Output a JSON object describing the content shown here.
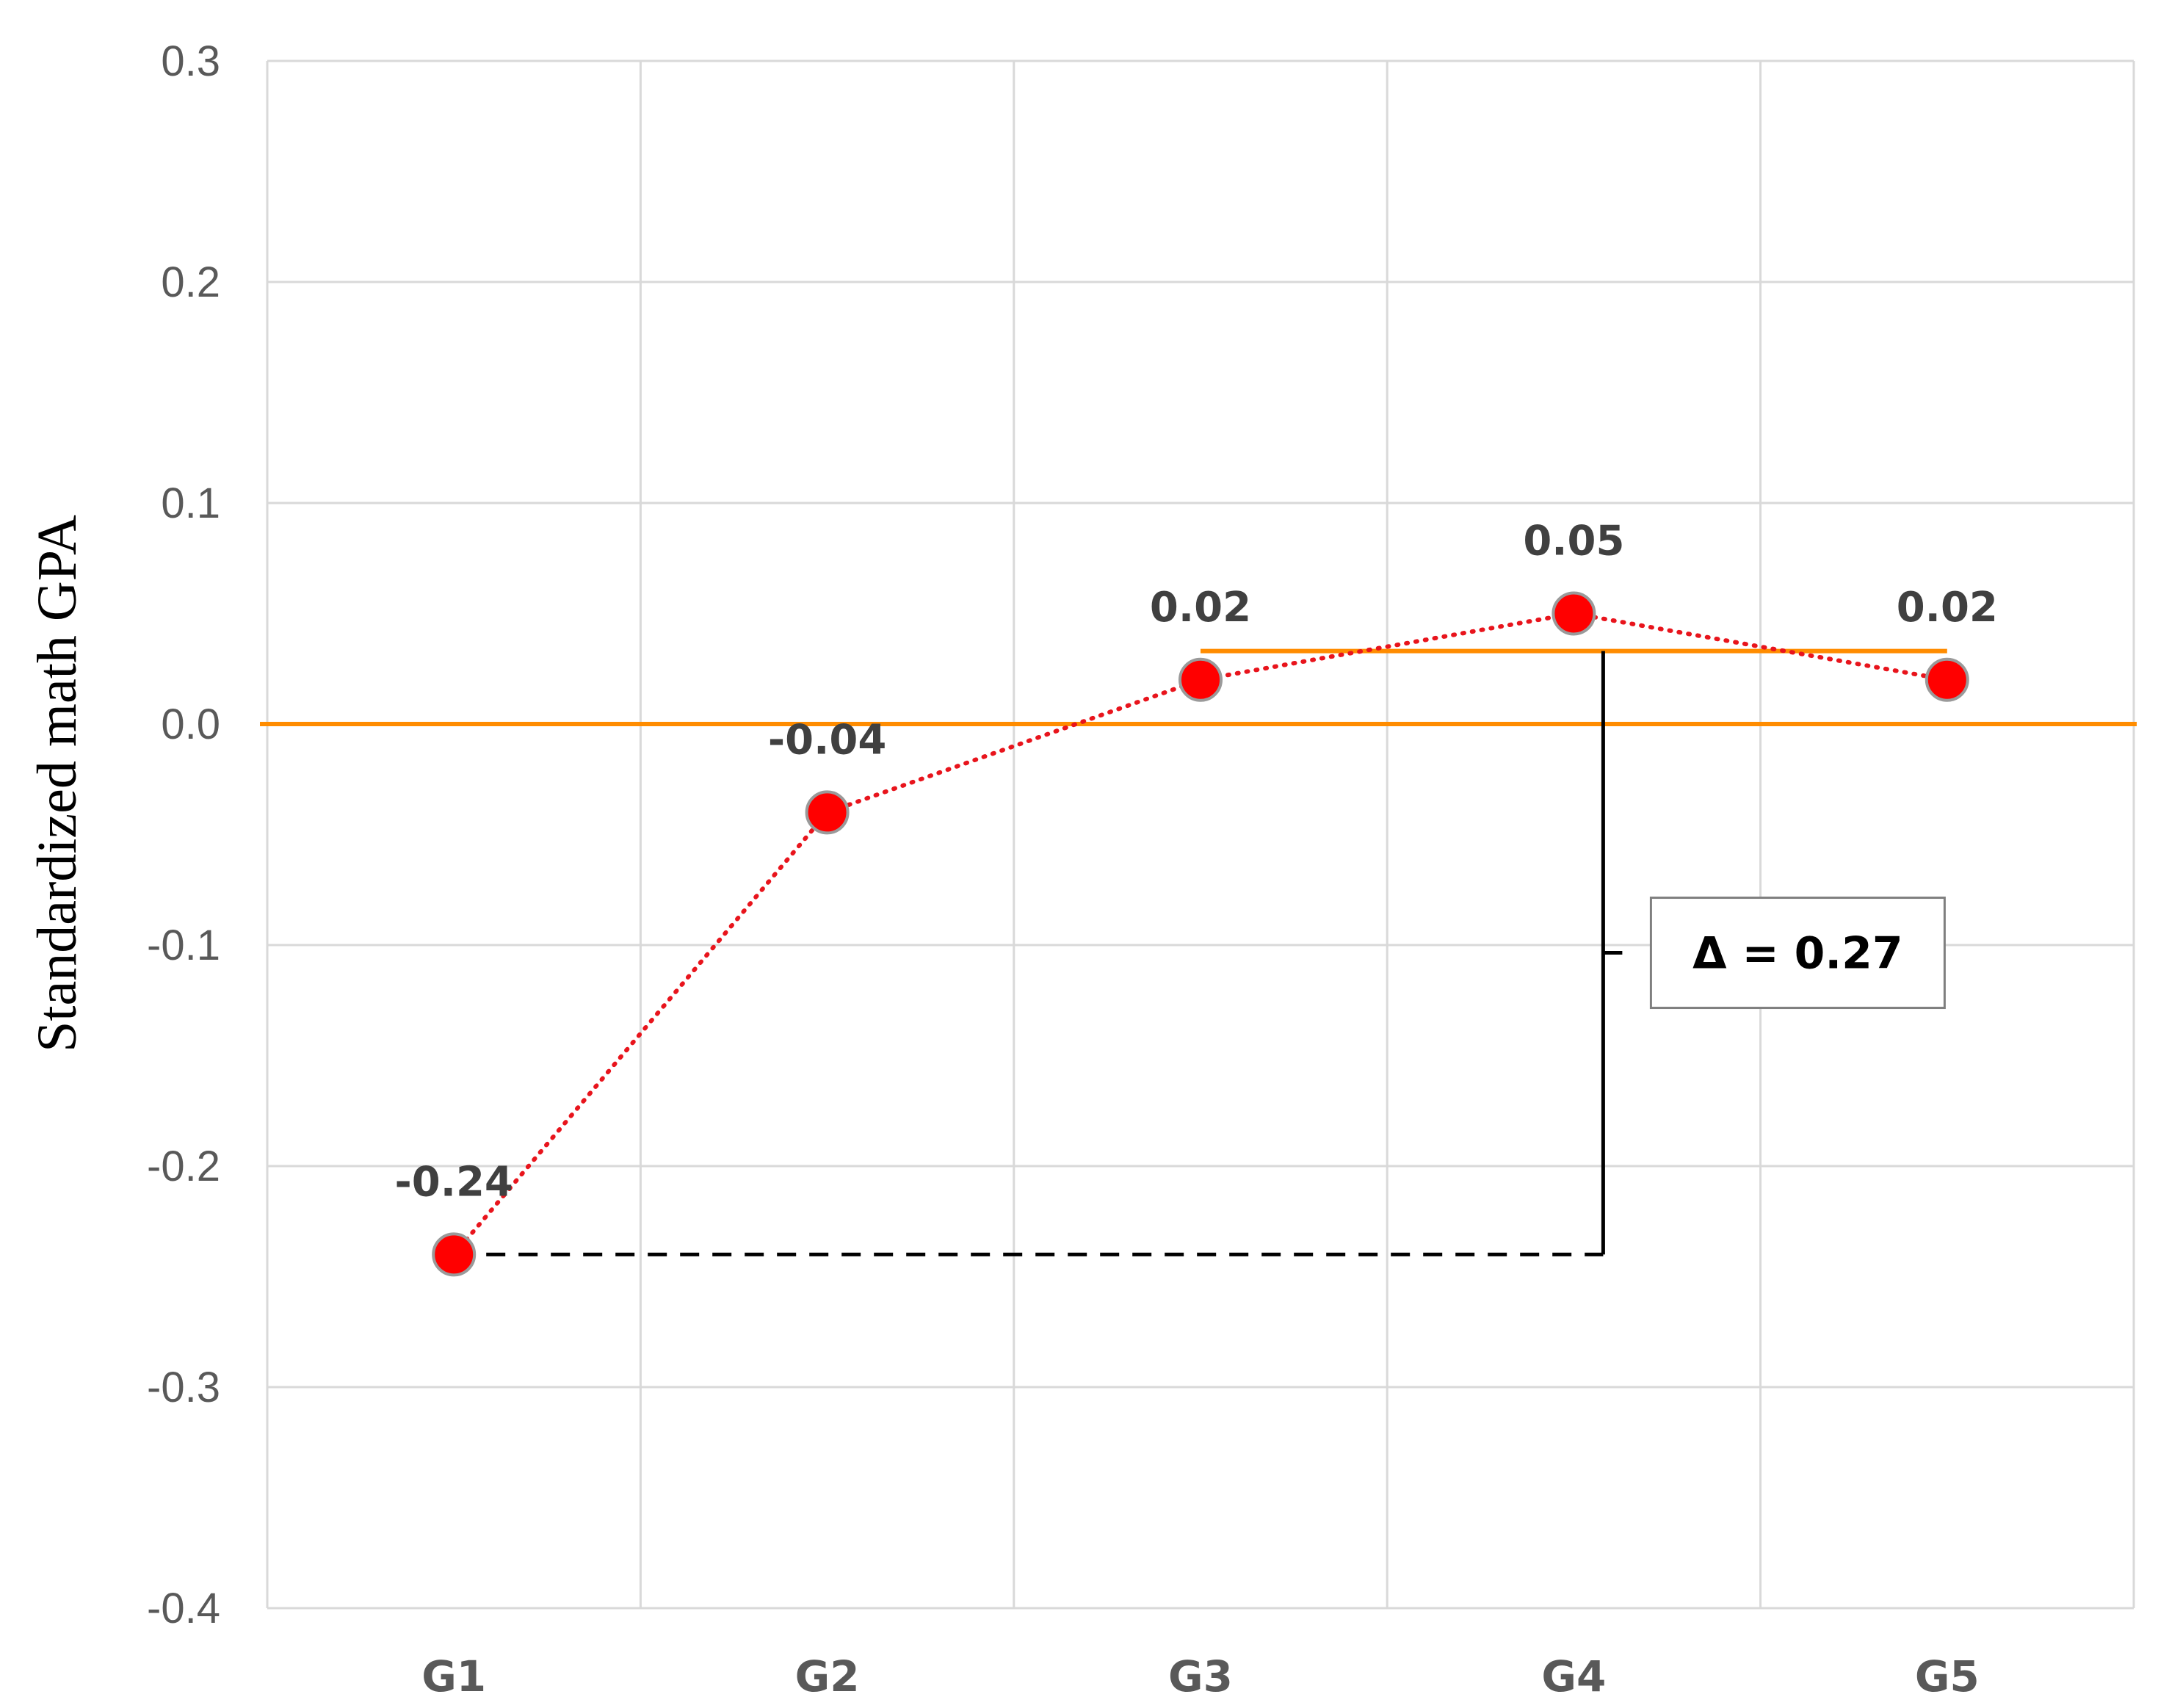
{
  "chart_data": {
    "type": "line",
    "categories": [
      "G1",
      "G2",
      "G3",
      "G4",
      "G5"
    ],
    "series": [
      {
        "values": [
          -0.24,
          -0.04,
          0.02,
          0.05,
          0.02
        ]
      }
    ],
    "data_labels": [
      "-0.24",
      "-0.04",
      "0.02",
      "0.05",
      "0.02"
    ],
    "ylabel": "Standardized math GPA",
    "xlabel": "",
    "ylim": [
      -0.4,
      0.3
    ],
    "yticks": [
      0.3,
      0.2,
      0.1,
      0.0,
      -0.1,
      -0.2,
      -0.3,
      -0.4
    ],
    "ytick_labels": [
      "0.3",
      "0.2",
      "0.1",
      "0.0",
      "-0.1",
      "-0.2",
      "-0.3",
      "-0.4"
    ],
    "grid": true,
    "reference_line": {
      "value": 0.0,
      "color": "#ff8c00"
    },
    "bracket_line": {
      "value": 0.033,
      "from": "G3",
      "to": "G5",
      "color": "#ff8c00"
    },
    "annotation": {
      "text": "Δ = 0.27",
      "from_value": -0.24,
      "to_value": 0.033
    },
    "colors": {
      "marker": "#ff0000",
      "line": "#e8141c",
      "grid": "#d9d9d9",
      "accent": "#ff8c00"
    }
  }
}
